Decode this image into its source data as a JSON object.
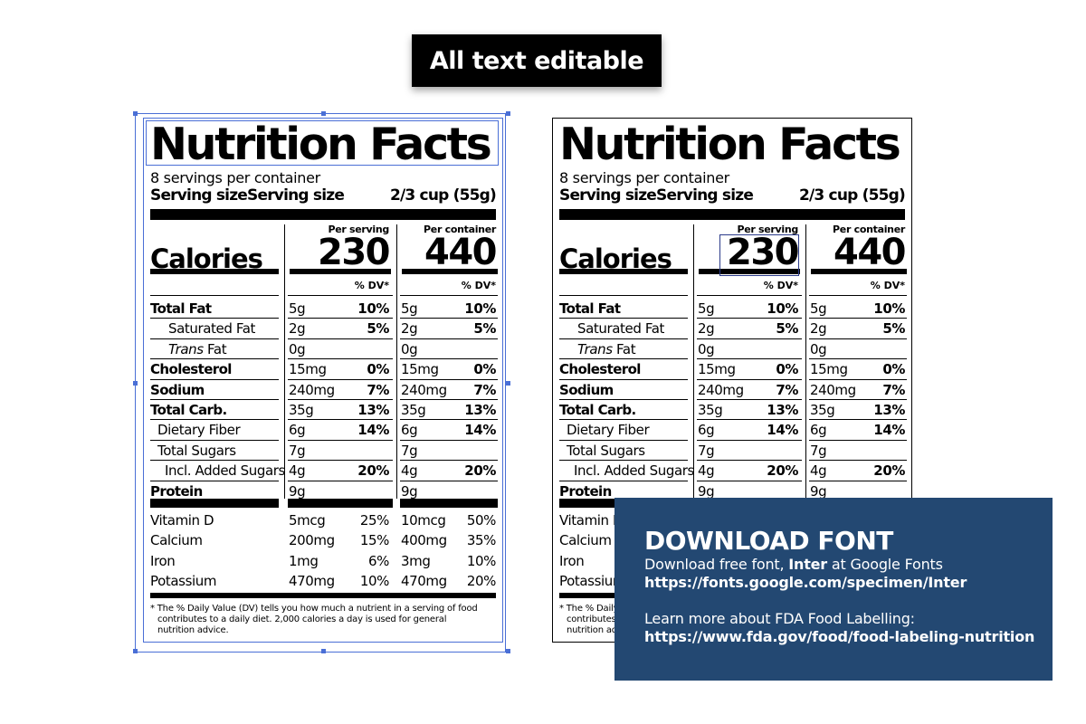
{
  "header": {
    "badge": "All text editable"
  },
  "label": {
    "title": "Nutrition Facts",
    "servings": "8 servings per container",
    "serving_size_label": "Serving sizeServing size",
    "serving_size_value": "2/3 cup (55g)",
    "per_serving": "Per serving",
    "per_container": "Per container",
    "calories_label": "Calories",
    "calories_serving": "230",
    "calories_container": "440",
    "dv_head": "% DV*",
    "nutrients": [
      {
        "name": "Total Fat",
        "bold": true,
        "indent": 0,
        "serving_amt": "5g",
        "serving_dv": "10%",
        "container_amt": "5g",
        "container_dv": "10%"
      },
      {
        "name": "Saturated Fat",
        "bold": false,
        "indent": 20,
        "serving_amt": "2g",
        "serving_dv": "5%",
        "container_amt": "2g",
        "container_dv": "5%"
      },
      {
        "name": "Trans Fat",
        "bold": false,
        "indent": 20,
        "italic_prefix": "Trans",
        "serving_amt": "0g",
        "serving_dv": "",
        "container_amt": "0g",
        "container_dv": ""
      },
      {
        "name": "Cholesterol",
        "bold": true,
        "indent": 0,
        "serving_amt": "15mg",
        "serving_dv": "0%",
        "container_amt": "15mg",
        "container_dv": "0%"
      },
      {
        "name": "Sodium",
        "bold": true,
        "indent": 0,
        "serving_amt": "240mg",
        "serving_dv": "7%",
        "container_amt": "240mg",
        "container_dv": "7%"
      },
      {
        "name": "Total Carb.",
        "bold": true,
        "indent": 0,
        "serving_amt": "35g",
        "serving_dv": "13%",
        "container_amt": "35g",
        "container_dv": "13%"
      },
      {
        "name": "Dietary Fiber",
        "bold": false,
        "indent": 8,
        "serving_amt": "6g",
        "serving_dv": "14%",
        "container_amt": "6g",
        "container_dv": "14%"
      },
      {
        "name": "Total Sugars",
        "bold": false,
        "indent": 8,
        "serving_amt": "7g",
        "serving_dv": "",
        "container_amt": "7g",
        "container_dv": ""
      },
      {
        "name": "Incl. Added Sugars",
        "bold": false,
        "indent": 16,
        "serving_amt": "4g",
        "serving_dv": "20%",
        "container_amt": "4g",
        "container_dv": "20%"
      },
      {
        "name": "Protein",
        "bold": true,
        "indent": 0,
        "serving_amt": "9g",
        "serving_dv": "",
        "container_amt": "9g",
        "container_dv": ""
      }
    ],
    "vitamins": [
      {
        "name": "Vitamin D",
        "serving_amt": "5mcg",
        "serving_dv": "25%",
        "container_amt": "10mcg",
        "container_dv": "50%"
      },
      {
        "name": "Calcium",
        "serving_amt": "200mg",
        "serving_dv": "15%",
        "container_amt": "400mg",
        "container_dv": "35%"
      },
      {
        "name": "Iron",
        "serving_amt": "1mg",
        "serving_dv": "6%",
        "container_amt": "3mg",
        "container_dv": "10%"
      },
      {
        "name": "Potassium",
        "serving_amt": "470mg",
        "serving_dv": "10%",
        "container_amt": "470mg",
        "container_dv": "20%"
      }
    ],
    "footnote_line1": "* The % Daily Value (DV) tells you how much a nutrient in a serving of food",
    "footnote_line2": "contributes to a daily diet. 2,000 calories a day is used for general",
    "footnote_line3": "nutrition advice."
  },
  "download": {
    "title": "DOWNLOAD FONT",
    "line1_prefix": "Download free font, ",
    "line1_bold": "Inter",
    "line1_suffix": " at Google Fonts",
    "url1": "https://fonts.google.com/specimen/Inter",
    "line2": "Learn more about FDA Food Labelling:",
    "url2": "https://www.fda.gov/food/food-labeling-nutrition"
  },
  "colors": {
    "panel": "#234872",
    "guide": "#4a6fd6",
    "badge": "#000000"
  }
}
